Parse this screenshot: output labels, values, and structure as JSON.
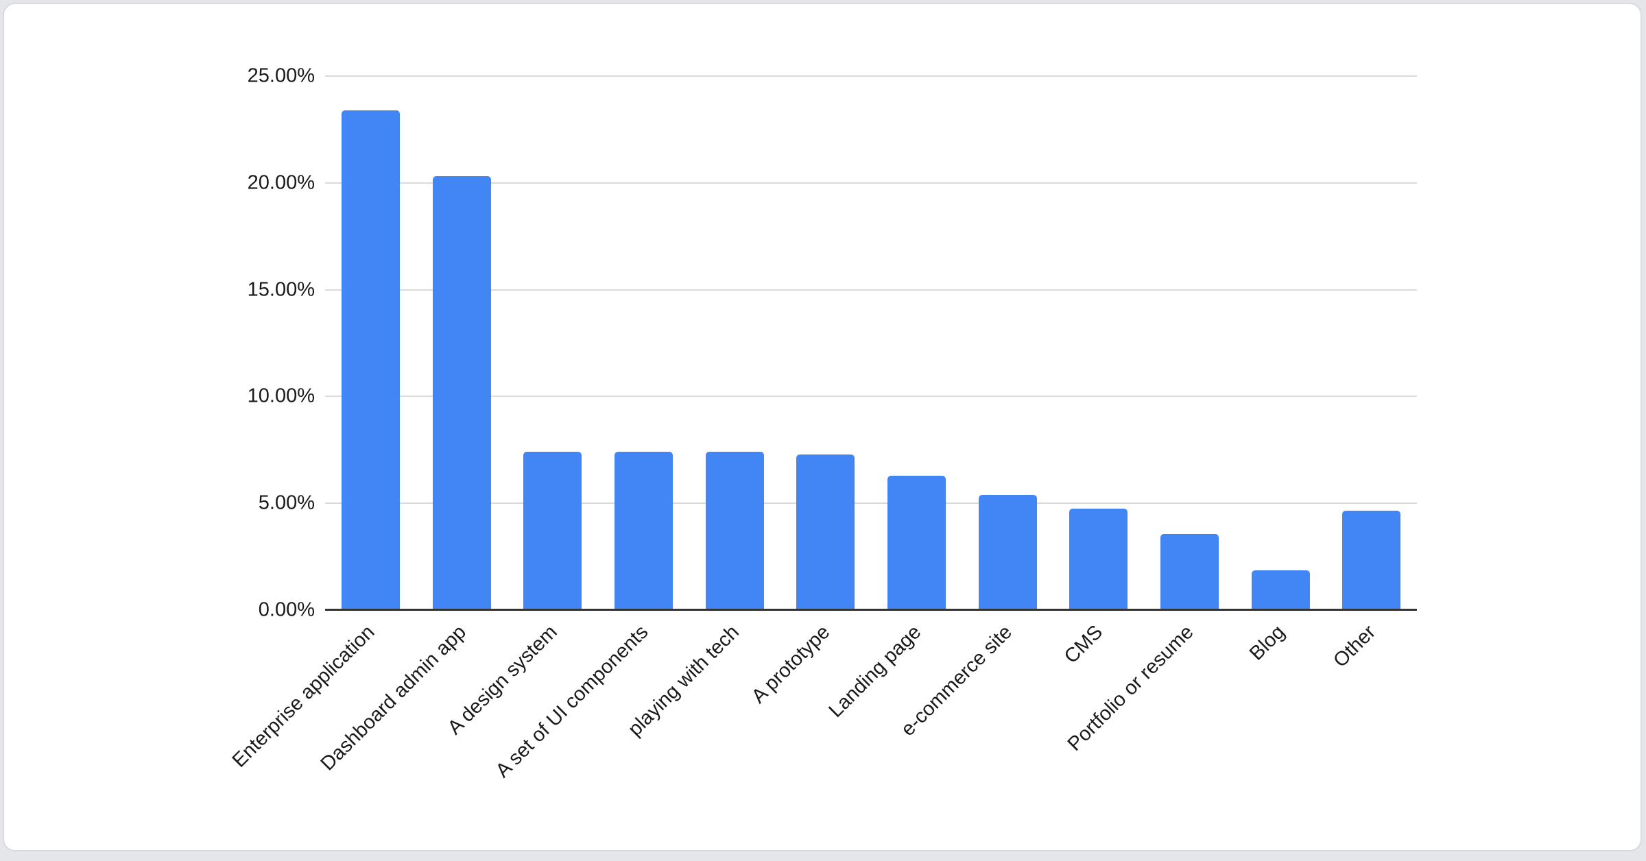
{
  "page": {
    "background": "#e4e6e9",
    "card_background": "#ffffff",
    "card_border_color": "#d8dade"
  },
  "chart_data": {
    "type": "bar",
    "title": "",
    "categories": [
      "Enterprise application",
      "Dashboard admin app",
      "A design system",
      "A set of UI components",
      "playing with tech",
      "A prototype",
      "Landing page",
      "e-commerce site",
      "CMS",
      "Portfolio or resume",
      "Blog",
      "Other"
    ],
    "values": [
      23.4,
      20.3,
      7.4,
      7.4,
      7.4,
      7.3,
      6.3,
      5.4,
      4.75,
      3.55,
      1.85,
      4.65
    ],
    "value_unit": "%",
    "y_ticks": [
      "0.00%",
      "5.00%",
      "10.00%",
      "15.00%",
      "20.00%",
      "25.00%"
    ],
    "ylim": [
      0,
      25
    ],
    "xlabel": "",
    "ylabel": "",
    "grid": true,
    "legend_position": "none",
    "x_label_rotation_deg": -45,
    "bar_color": "#4285f4",
    "gridline_color": "#dadada",
    "axis_line_color": "#333333",
    "label_color": "#1a1a1a"
  }
}
